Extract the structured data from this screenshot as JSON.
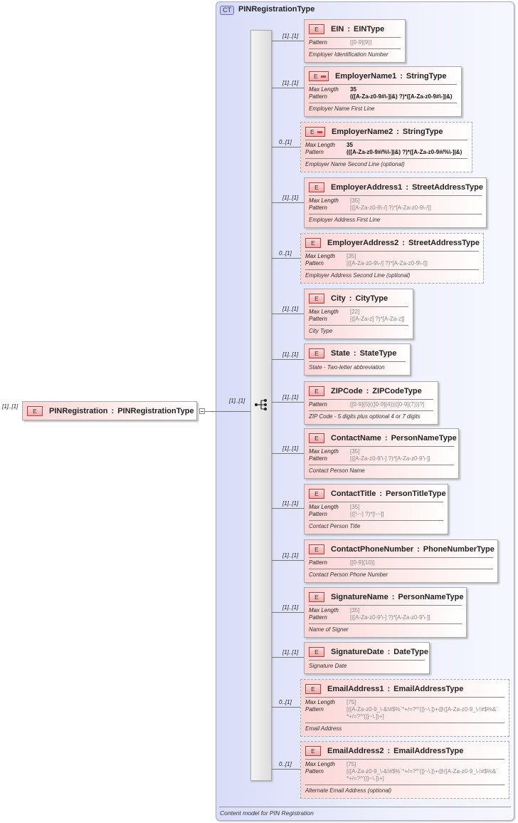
{
  "root": {
    "occurs": "[1]..[1]",
    "badge": "E",
    "name": "PINRegistration",
    "type": "PINRegistrationType",
    "seq_occurs": "[1]..[1]"
  },
  "complex_type": {
    "badge": "CT",
    "title": "PINRegistrationType",
    "documentation": "Content model for PIN Registration"
  },
  "colors": {
    "element_fill": "#fbd5d5",
    "type_fill": "#d8dcf8",
    "border": "#aaaaaa"
  },
  "elements": [
    {
      "occurs": "[1]..[1]",
      "name": "EIN",
      "type": "EINType",
      "optional": false,
      "complex_icon": false,
      "facets": [
        {
          "key": "Pattern",
          "value": "[[0-9]{9}]",
          "inherited": true
        }
      ],
      "doc": "Employer Identification Number"
    },
    {
      "occurs": "[1]..[1]",
      "name": "EmployerName1",
      "type": "StringType",
      "optional": false,
      "complex_icon": true,
      "facets": [
        {
          "key": "Max Length",
          "value": "35",
          "inherited": false
        },
        {
          "key": "Pattern",
          "value": "(([A-Za-z0-9#\\-]|&) ?)*([A-Za-z0-9#\\-]|&)",
          "inherited": false
        }
      ],
      "doc": "Employer Name First Line"
    },
    {
      "occurs": "0..[1]",
      "name": "EmployerName2",
      "type": "StringType",
      "optional": true,
      "complex_icon": true,
      "facets": [
        {
          "key": "Max Length",
          "value": "35",
          "inherited": false
        },
        {
          "key": "Pattern",
          "value": "(([A-Za-z0-9#/%\\-]|&) ?)*([A-Za-z0-9#/%\\-]|&)",
          "inherited": false
        }
      ],
      "doc": "Employer Name Second Line (optional)"
    },
    {
      "occurs": "[1]..[1]",
      "name": "EmployerAddress1",
      "type": "StreetAddressType",
      "optional": false,
      "complex_icon": false,
      "facets": [
        {
          "key": "Max Length",
          "value": "[35]",
          "inherited": true
        },
        {
          "key": "Pattern",
          "value": "[([A-Za-z0-9\\-/] ?)*[A-Za-z0-9\\-/]]",
          "inherited": true
        }
      ],
      "doc": "Employer Address First Line"
    },
    {
      "occurs": "0..[1]",
      "name": "EmployerAddress2",
      "type": "StreetAddressType",
      "optional": true,
      "complex_icon": false,
      "facets": [
        {
          "key": "Max Length",
          "value": "[35]",
          "inherited": true
        },
        {
          "key": "Pattern",
          "value": "[([A-Za-z0-9\\-/] ?)*[A-Za-z0-9\\-/]]",
          "inherited": true
        }
      ],
      "doc": "Employer Address Second Line (optional)"
    },
    {
      "occurs": "[1]..[1]",
      "name": "City",
      "type": "CityType",
      "optional": false,
      "complex_icon": false,
      "facets": [
        {
          "key": "Max Length",
          "value": "[22]",
          "inherited": true
        },
        {
          "key": "Pattern",
          "value": "[([A-Za-z] ?)*[A-Za-z]]",
          "inherited": true
        }
      ],
      "doc": "City Type"
    },
    {
      "occurs": "[1]..[1]",
      "name": "State",
      "type": "StateType",
      "optional": false,
      "complex_icon": false,
      "facets": [],
      "doc": "State - Two-letter abbreviation"
    },
    {
      "occurs": "[1]..[1]",
      "name": "ZIPCode",
      "type": "ZIPCodeType",
      "optional": false,
      "complex_icon": false,
      "facets": [
        {
          "key": "Pattern",
          "value": "[[0-9]{5}(([0-9]{4})|([0-9]{7}))?]",
          "inherited": true
        }
      ],
      "doc": "ZIP Code - 5 digits plus optional 4 or 7 digits"
    },
    {
      "occurs": "[1]..[1]",
      "name": "ContactName",
      "type": "PersonNameType",
      "optional": false,
      "complex_icon": false,
      "facets": [
        {
          "key": "Max Length",
          "value": "[35]",
          "inherited": true
        },
        {
          "key": "Pattern",
          "value": "[([A-Za-z0-9'\\-] ?)*[A-Za-z0-9'\\-]]",
          "inherited": true
        }
      ],
      "doc": "Contact Person Name"
    },
    {
      "occurs": "[1]..[1]",
      "name": "ContactTitle",
      "type": "PersonTitleType",
      "optional": false,
      "complex_icon": false,
      "facets": [
        {
          "key": "Max Length",
          "value": "[35]",
          "inherited": true
        },
        {
          "key": "Pattern",
          "value": "[([!-~] ?)*[!-~]]",
          "inherited": true
        }
      ],
      "doc": "Contact Person Title"
    },
    {
      "occurs": "[1]..[1]",
      "name": "ContactPhoneNumber",
      "type": "PhoneNumberType",
      "optional": false,
      "complex_icon": false,
      "facets": [
        {
          "key": "Pattern",
          "value": "[[0-9]{10}]",
          "inherited": true
        }
      ],
      "doc": "Contact Person Phone Number"
    },
    {
      "occurs": "[1]..[1]",
      "name": "SignatureName",
      "type": "PersonNameType",
      "optional": false,
      "complex_icon": false,
      "facets": [
        {
          "key": "Max Length",
          "value": "[35]",
          "inherited": true
        },
        {
          "key": "Pattern",
          "value": "[([A-Za-z0-9'\\-] ?)*[A-Za-z0-9'\\-]]",
          "inherited": true
        }
      ],
      "doc": "Name of Signer"
    },
    {
      "occurs": "[1]..[1]",
      "name": "SignatureDate",
      "type": "DateType",
      "optional": false,
      "complex_icon": false,
      "facets": [],
      "doc": "Signature Date"
    },
    {
      "occurs": "0..[1]",
      "name": "EmailAddress1",
      "type": "EmailAddressType",
      "optional": true,
      "complex_icon": false,
      "facets": [
        {
          "key": "Max Length",
          "value": "[75]",
          "inherited": true
        },
        {
          "key": "Pattern",
          "value": "[([A-Za-z0-9_\\-&!#$%`*+/=?^'{|}~\\.])+@([A-Za-z0-9_\\-!#$%&`*+/=?^'{|}~\\.])+]",
          "inherited": true
        }
      ],
      "doc": "Email Address"
    },
    {
      "occurs": "0..[1]",
      "name": "EmailAddress2",
      "type": "EmailAddressType",
      "optional": true,
      "complex_icon": false,
      "facets": [
        {
          "key": "Max Length",
          "value": "[75]",
          "inherited": true
        },
        {
          "key": "Pattern",
          "value": "[([A-Za-z0-9_\\-&!#$%`*+/=?^'{|}~\\.])+@([A-Za-z0-9_\\-!#$%&`*+/=?^'{|}~\\.])+]",
          "inherited": true
        }
      ],
      "doc": "Alternate Email Address (optional)"
    }
  ]
}
